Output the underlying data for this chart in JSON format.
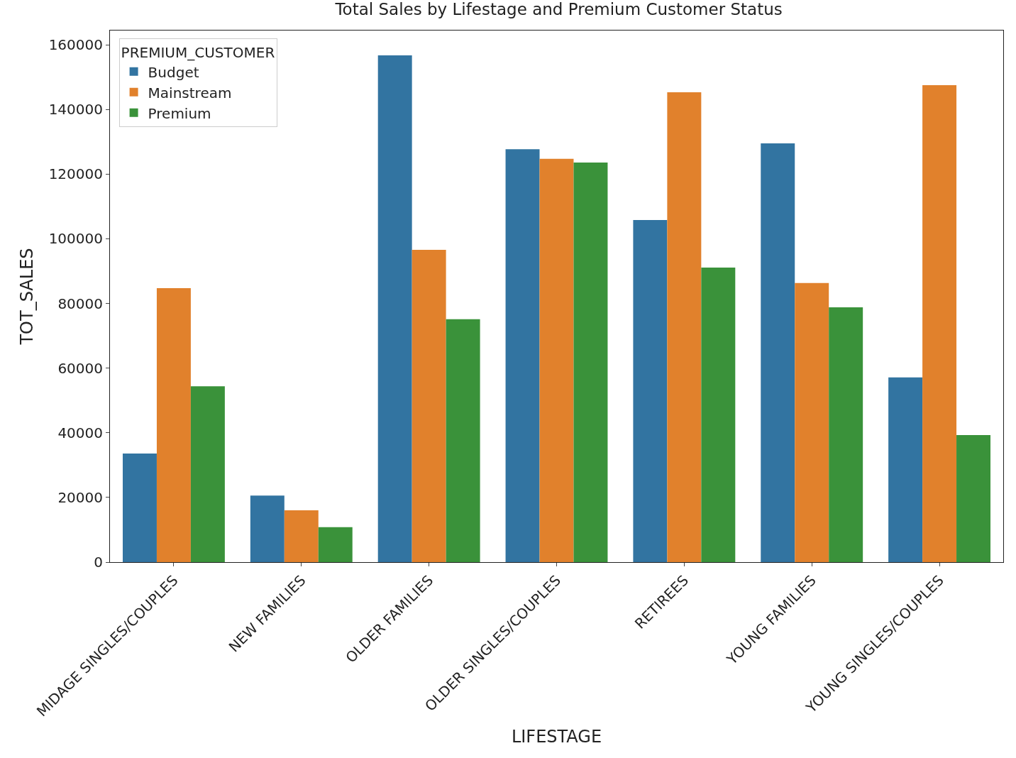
{
  "chart_data": {
    "type": "bar",
    "title": "Total Sales by Lifestage and Premium Customer Status",
    "xlabel": "LIFESTAGE",
    "ylabel": "TOT_SALES",
    "legend_title": "PREMIUM_CUSTOMER",
    "categories": [
      "MIDAGE SINGLES/COUPLES",
      "NEW FAMILIES",
      "OLDER FAMILIES",
      "OLDER SINGLES/COUPLES",
      "RETIREES",
      "YOUNG FAMILIES",
      "YOUNG SINGLES/COUPLES"
    ],
    "series": [
      {
        "name": "Budget",
        "color": "#3274a1",
        "values": [
          33600,
          20600,
          156700,
          127700,
          105800,
          129500,
          57100
        ]
      },
      {
        "name": "Mainstream",
        "color": "#e1812c",
        "values": [
          84700,
          16000,
          96600,
          124700,
          145300,
          86300,
          147500
        ]
      },
      {
        "name": "Premium",
        "color": "#3a923a",
        "values": [
          54400,
          10800,
          75100,
          123600,
          91100,
          78800,
          39300
        ]
      }
    ],
    "ylim": [
      0,
      164400
    ],
    "yticks": [
      0,
      20000,
      40000,
      60000,
      80000,
      100000,
      120000,
      140000,
      160000
    ],
    "legend": "top left"
  }
}
